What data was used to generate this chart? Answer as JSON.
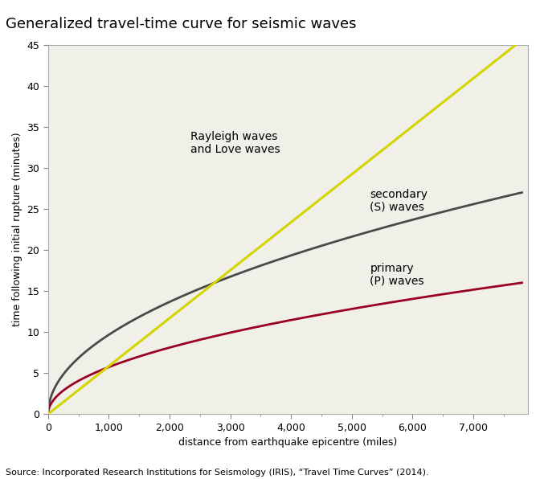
{
  "title": "Generalized travel-time curve for seismic waves",
  "xlabel": "distance from earthquake epicentre (miles)",
  "ylabel": "time following initial rupture (minutes)",
  "source": "Source: Incorporated Research Institutions for Seismology (IRIS), “Travel Time Curves” (2014).",
  "xlim": [
    0,
    7900
  ],
  "ylim": [
    0,
    45
  ],
  "xticks": [
    0,
    1000,
    2000,
    3000,
    4000,
    5000,
    6000,
    7000
  ],
  "yticks": [
    0,
    5,
    10,
    15,
    20,
    25,
    30,
    35,
    40,
    45
  ],
  "rayleigh_label": "Rayleigh waves\nand Love waves",
  "secondary_label": "secondary\n(S) waves",
  "primary_label": "primary\n(P) waves",
  "rayleigh_color": "#d4d400",
  "secondary_color": "#4a4a4a",
  "primary_color": "#990022",
  "background_color": "#ffffff",
  "plot_bg_color": "#f0f0e8",
  "title_fontsize": 13,
  "axis_label_fontsize": 9,
  "tick_fontsize": 9,
  "source_fontsize": 8,
  "annotation_fontsize": 10,
  "rayleigh_x_start": 480,
  "rayleigh_x_end": 7700,
  "rayleigh_y_end": 45,
  "p_end_val": 16.0,
  "s_end_val": 27.0,
  "x_max": 7800
}
